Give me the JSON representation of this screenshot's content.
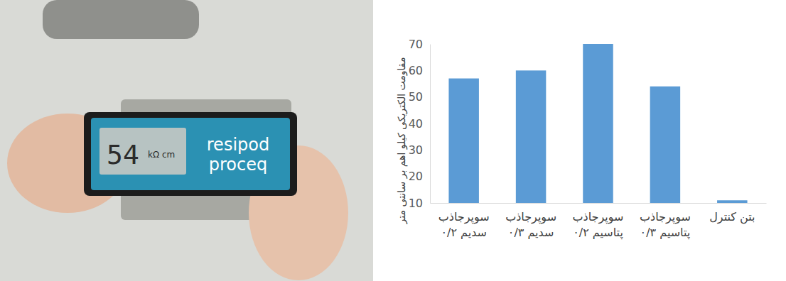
{
  "chart_data": {
    "type": "bar",
    "y_label": "مقاومت الکتریکی کیلو اهم بر سانتی متر",
    "categories": [
      "سوپرجاذب سدیم ۰/۲",
      "سوپرجاذب سدیم ۰/۳",
      "سوپرجاذب پتاسیم ۰/۲",
      "سوپرجاذب پتاسیم ۰/۳",
      "بتن کنترل"
    ],
    "values": [
      57,
      60,
      70,
      54,
      11
    ],
    "color": "#5b9bd5",
    "ylim": [
      10,
      70
    ],
    "yticks": [
      10,
      20,
      30,
      40,
      50,
      60,
      70
    ],
    "grid": false
  },
  "photo": {
    "display_value": "54",
    "display_unit": "kΩ cm",
    "brand_lines": [
      "resipod",
      "proceq"
    ]
  }
}
